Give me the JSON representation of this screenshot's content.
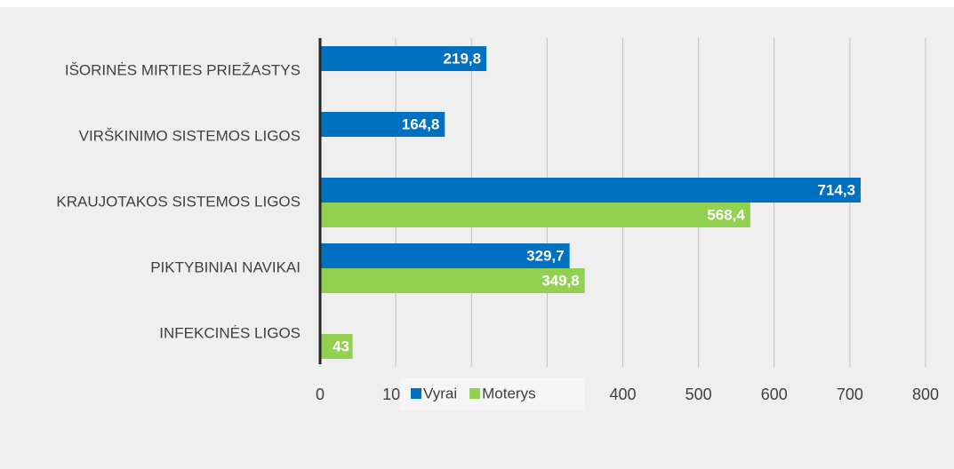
{
  "chart_data": {
    "type": "bar",
    "orientation": "horizontal",
    "categories": [
      "IŠORINĖS MIRTIES PRIEŽASTYS",
      "VIRŠKINIMO SISTEMOS LIGOS",
      "KRAUJOTAKOS SISTEMOS LIGOS",
      "PIKTYBINIAI NAVIKAI",
      "INFEKCINĖS LIGOS"
    ],
    "series": [
      {
        "name": "Vyrai",
        "color": "#0070c0",
        "values": [
          219.8,
          164.8,
          714.3,
          329.7,
          null
        ],
        "value_labels": [
          "219,8",
          "164,8",
          "714,3",
          "329,7",
          null
        ]
      },
      {
        "name": "Moterys",
        "color": "#92d050",
        "values": [
          null,
          null,
          568.4,
          349.8,
          43
        ],
        "value_labels": [
          null,
          null,
          "568,4",
          "349,8",
          "43"
        ]
      }
    ],
    "xlim": [
      0,
      800
    ],
    "xticks": [
      0,
      100,
      200,
      300,
      400,
      500,
      600,
      700,
      800
    ],
    "grid": true,
    "legend": "bottom"
  }
}
